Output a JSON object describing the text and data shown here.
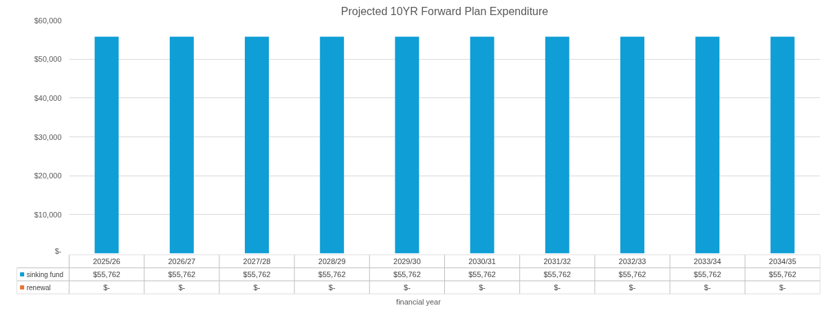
{
  "chart_data": {
    "type": "bar",
    "stacked": true,
    "title": "Projected 10YR Forward Plan Expenditure",
    "xlabel": "financial year",
    "categories": [
      "2025/26",
      "2026/27",
      "2027/28",
      "2028/29",
      "2029/30",
      "2030/31",
      "2031/32",
      "2032/33",
      "2033/34",
      "2034/35"
    ],
    "series": [
      {
        "name": "sinking fund",
        "color": "#0f9ed5",
        "values": [
          55762,
          55762,
          55762,
          55762,
          55762,
          55762,
          55762,
          55762,
          55762,
          55762
        ],
        "value_labels": [
          "$55,762",
          "$55,762",
          "$55,762",
          "$55,762",
          "$55,762",
          "$55,762",
          "$55,762",
          "$55,762",
          "$55,762",
          "$55,762"
        ]
      },
      {
        "name": "renewal",
        "color": "#e97132",
        "values": [
          0,
          0,
          0,
          0,
          0,
          0,
          0,
          0,
          0,
          0
        ],
        "value_labels": [
          "$-",
          "$-",
          "$-",
          "$-",
          "$-",
          "$-",
          "$-",
          "$-",
          "$-",
          "$-"
        ]
      }
    ],
    "ylim": [
      0,
      60000
    ],
    "yticks": [
      {
        "value": 0,
        "label": "$-"
      },
      {
        "value": 10000,
        "label": "$10,000"
      },
      {
        "value": 20000,
        "label": "$20,000"
      },
      {
        "value": 30000,
        "label": "$30,000"
      },
      {
        "value": 40000,
        "label": "$40,000"
      },
      {
        "value": 50000,
        "label": "$50,000"
      },
      {
        "value": 60000,
        "label": "$60,000"
      }
    ],
    "grid": "y",
    "legend": "bottom"
  }
}
